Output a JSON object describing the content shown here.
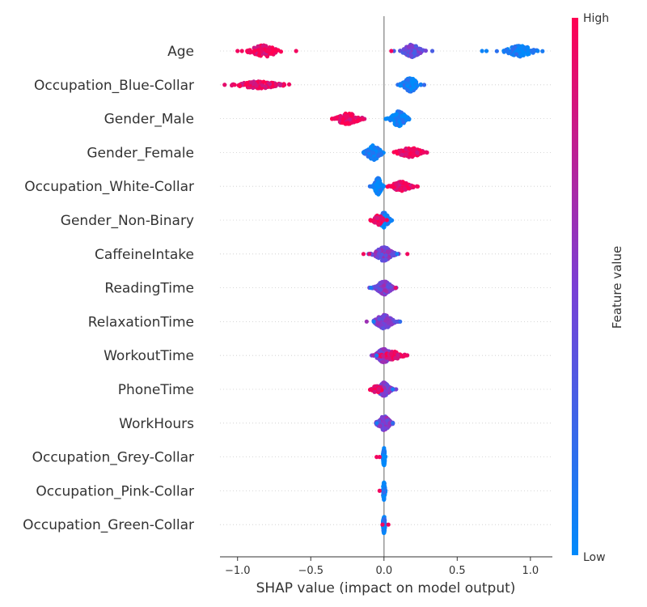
{
  "chart_data": {
    "type": "scatter",
    "subtype": "shap-beeswarm",
    "xlabel": "SHAP value (impact on model output)",
    "xlim": [
      -1.12,
      1.15
    ],
    "xticks": [
      {
        "value": -1.0,
        "label": "−1.0"
      },
      {
        "value": -0.5,
        "label": "−0.5"
      },
      {
        "value": 0.0,
        "label": "0.0"
      },
      {
        "value": 0.5,
        "label": "0.5"
      },
      {
        "value": 1.0,
        "label": "1.0"
      }
    ],
    "colorbar": {
      "title": "Feature value",
      "high_label": "High",
      "low_label": "Low",
      "low_color": "#008afb",
      "mid_color": "#7a3fd5",
      "high_color": "#ff0052"
    },
    "zero_line": true,
    "features": [
      {
        "name": "Age",
        "clusters": [
          {
            "center": -0.82,
            "spread": 0.055,
            "n": 110,
            "value": 0.95,
            "height": 0.85
          },
          {
            "center": 0.19,
            "spread": 0.035,
            "n": 90,
            "value": 0.45,
            "height": 0.95
          },
          {
            "center": 0.93,
            "spread": 0.055,
            "n": 110,
            "value": 0.05,
            "height": 0.8
          }
        ],
        "outliers": [
          [
            -1.0,
            0.95
          ],
          [
            -0.97,
            0.95
          ],
          [
            -0.6,
            0.95
          ],
          [
            0.05,
            0.95
          ],
          [
            0.33,
            0.3
          ],
          [
            0.67,
            0.05
          ],
          [
            0.7,
            0.05
          ],
          [
            1.05,
            0.05
          ]
        ]
      },
      {
        "name": "Occupation_Blue-Collar",
        "clusters": [
          {
            "center": -0.85,
            "spread": 0.09,
            "n": 130,
            "value": 0.95,
            "height": 0.5
          },
          {
            "center": 0.18,
            "spread": 0.03,
            "n": 110,
            "value": 0.05,
            "height": 1.0
          }
        ],
        "outliers": [
          [
            -1.02,
            0.95
          ],
          [
            -0.68,
            0.95
          ]
        ]
      },
      {
        "name": "Gender_Male",
        "clusters": [
          {
            "center": -0.25,
            "spread": 0.05,
            "n": 100,
            "value": 0.95,
            "height": 0.8
          },
          {
            "center": 0.1,
            "spread": 0.03,
            "n": 130,
            "value": 0.05,
            "height": 1.1
          }
        ],
        "outliers": [
          [
            -0.34,
            0.95
          ],
          [
            0.17,
            0.05
          ]
        ]
      },
      {
        "name": "Gender_Female",
        "clusters": [
          {
            "center": -0.07,
            "spread": 0.03,
            "n": 100,
            "value": 0.05,
            "height": 1.1
          },
          {
            "center": 0.18,
            "spread": 0.05,
            "n": 90,
            "value": 0.95,
            "height": 0.7
          }
        ],
        "outliers": [
          [
            -0.14,
            0.05
          ],
          [
            0.27,
            0.95
          ]
        ]
      },
      {
        "name": "Occupation_White-Collar",
        "clusters": [
          {
            "center": -0.04,
            "spread": 0.015,
            "n": 110,
            "value": 0.05,
            "height": 1.2
          },
          {
            "center": 0.12,
            "spread": 0.04,
            "n": 90,
            "value": 0.95,
            "height": 0.7
          }
        ],
        "outliers": [
          [
            0.2,
            0.95
          ]
        ]
      },
      {
        "name": "Gender_Non-Binary",
        "clusters": [
          {
            "center": 0.0,
            "spread": 0.02,
            "n": 100,
            "value": 0.05,
            "height": 1.1
          },
          {
            "center": -0.04,
            "spread": 0.02,
            "n": 60,
            "value": 0.95,
            "height": 0.7
          }
        ],
        "outliers": [
          [
            -0.07,
            0.95
          ],
          [
            0.05,
            0.05
          ]
        ]
      },
      {
        "name": "CaffeineIntake",
        "clusters": [
          {
            "center": 0.0,
            "spread": 0.035,
            "n": 180,
            "value": 0.5,
            "height": 1.0
          }
        ],
        "outliers": [
          [
            -0.14,
            0.95
          ],
          [
            0.16,
            0.95
          ],
          [
            0.09,
            0.1
          ],
          [
            -0.1,
            0.9
          ]
        ]
      },
      {
        "name": "ReadingTime",
        "clusters": [
          {
            "center": 0.0,
            "spread": 0.03,
            "n": 180,
            "value": 0.5,
            "height": 1.0
          }
        ],
        "outliers": [
          [
            -0.09,
            0.1
          ],
          [
            0.08,
            0.9
          ]
        ]
      },
      {
        "name": "RelaxationTime",
        "clusters": [
          {
            "center": 0.0,
            "spread": 0.035,
            "n": 180,
            "value": 0.5,
            "height": 1.0
          }
        ],
        "outliers": [
          [
            -0.07,
            0.1
          ],
          [
            0.11,
            0.2
          ]
        ]
      },
      {
        "name": "WorkoutTime",
        "clusters": [
          {
            "center": 0.0,
            "spread": 0.03,
            "n": 150,
            "value": 0.5,
            "height": 1.0
          },
          {
            "center": 0.06,
            "spread": 0.04,
            "n": 60,
            "value": 0.95,
            "height": 0.6
          }
        ],
        "outliers": [
          [
            0.15,
            0.95
          ],
          [
            -0.05,
            0.1
          ]
        ]
      },
      {
        "name": "PhoneTime",
        "clusters": [
          {
            "center": 0.0,
            "spread": 0.025,
            "n": 150,
            "value": 0.5,
            "height": 1.0
          },
          {
            "center": -0.05,
            "spread": 0.02,
            "n": 40,
            "value": 0.95,
            "height": 0.5
          }
        ],
        "outliers": [
          [
            -0.09,
            0.95
          ],
          [
            0.06,
            0.1
          ]
        ]
      },
      {
        "name": "WorkHours",
        "clusters": [
          {
            "center": 0.0,
            "spread": 0.025,
            "n": 170,
            "value": 0.5,
            "height": 1.0
          }
        ],
        "outliers": [
          [
            -0.05,
            0.1
          ],
          [
            0.06,
            0.2
          ]
        ]
      },
      {
        "name": "Occupation_Grey-Collar",
        "clusters": [
          {
            "center": 0.0,
            "spread": 0.004,
            "n": 90,
            "value": 0.05,
            "height": 1.3
          }
        ],
        "outliers": [
          [
            -0.05,
            0.95
          ],
          [
            -0.03,
            0.95
          ]
        ]
      },
      {
        "name": "Occupation_Pink-Collar",
        "clusters": [
          {
            "center": 0.0,
            "spread": 0.004,
            "n": 90,
            "value": 0.05,
            "height": 1.3
          }
        ],
        "outliers": [
          [
            -0.03,
            0.95
          ]
        ]
      },
      {
        "name": "Occupation_Green-Collar",
        "clusters": [
          {
            "center": 0.0,
            "spread": 0.004,
            "n": 90,
            "value": 0.05,
            "height": 1.3
          }
        ],
        "outliers": [
          [
            0.03,
            0.95
          ],
          [
            -0.01,
            0.95
          ]
        ]
      }
    ]
  }
}
